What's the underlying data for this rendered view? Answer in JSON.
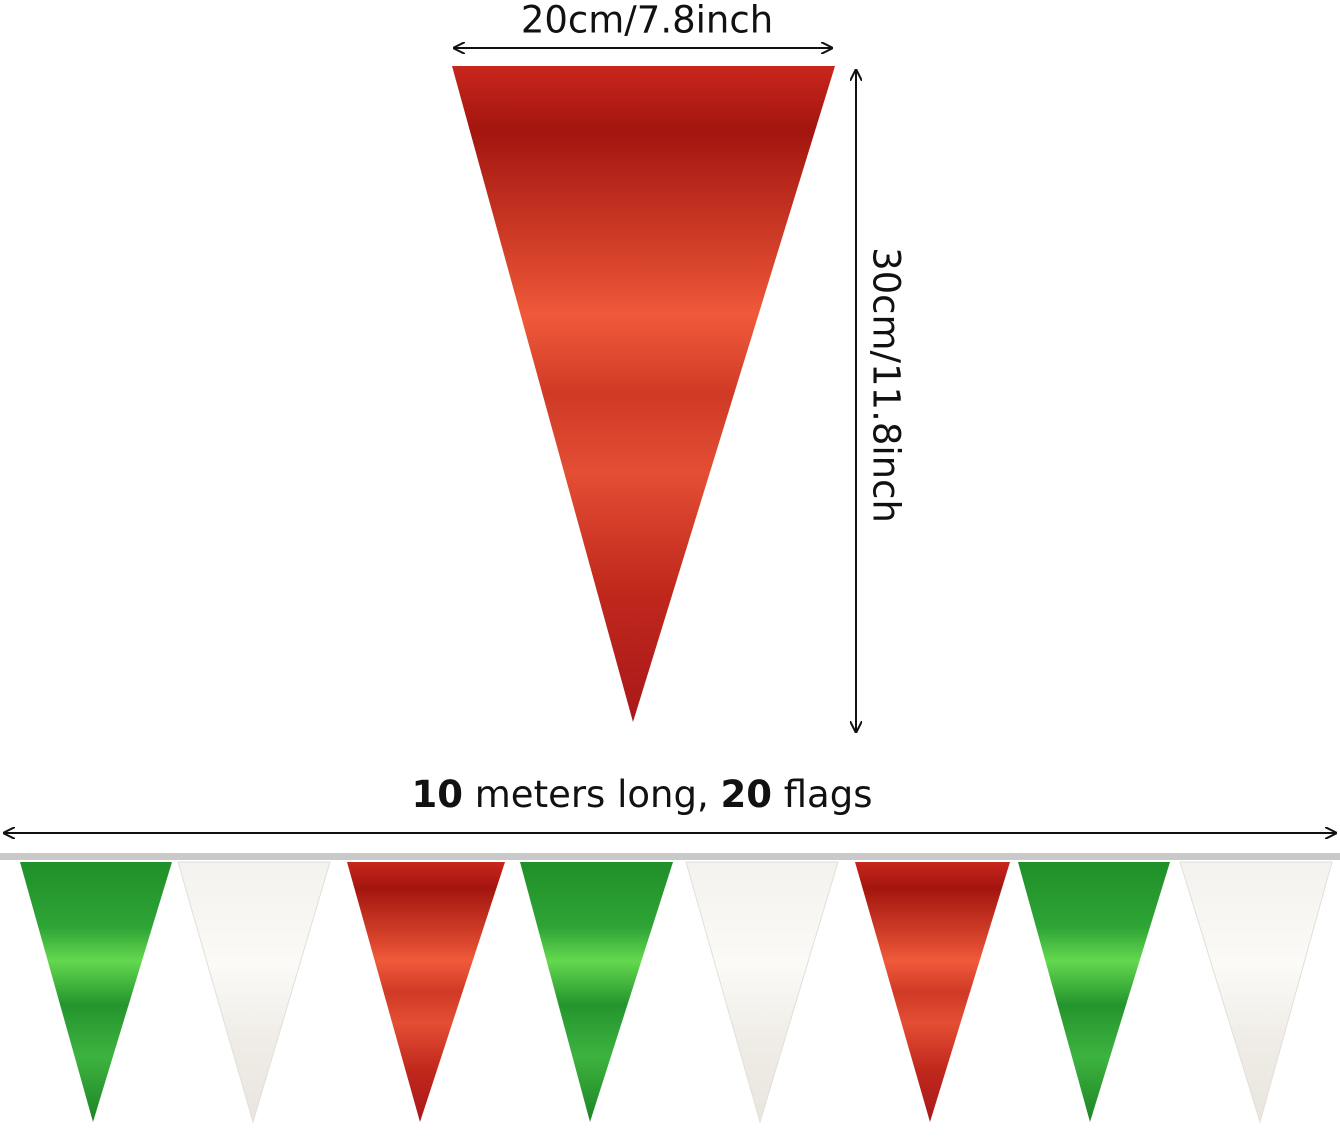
{
  "dimensions": {
    "width_label": "20cm/7.8inch",
    "height_label": "30cm/11.8inch"
  },
  "caption": {
    "parts": [
      "10",
      " meters long, ",
      "20",
      " flags"
    ]
  }
}
